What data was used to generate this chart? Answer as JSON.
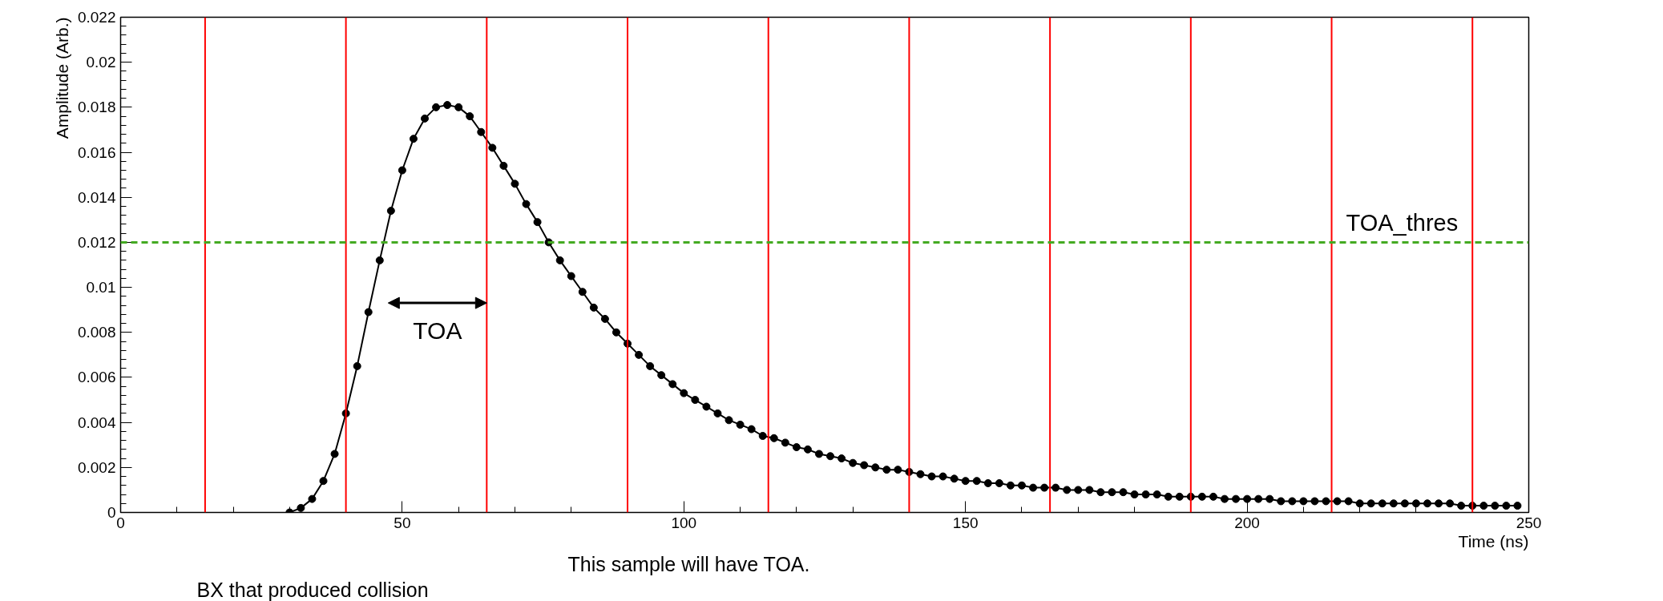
{
  "chart_data": {
    "type": "line",
    "xlabel": "Time (ns)",
    "ylabel": "Amplitude (Arb.)",
    "xlim": [
      0,
      250
    ],
    "ylim": [
      0,
      0.022
    ],
    "xticks": [
      0,
      50,
      100,
      150,
      200,
      250
    ],
    "yticks": [
      0,
      0.002,
      0.004,
      0.006,
      0.008,
      0.01,
      0.012,
      0.014,
      0.016,
      0.018,
      0.02,
      0.022
    ],
    "grid": false,
    "marker": "circle",
    "line_style": "solid",
    "series": [
      {
        "color": "#000000",
        "x": [
          30,
          32,
          34,
          36,
          38,
          40,
          42,
          44,
          46,
          48,
          50,
          52,
          54,
          56,
          58,
          60,
          62,
          64,
          66,
          68,
          70,
          72,
          74,
          76,
          78,
          80,
          82,
          84,
          86,
          88,
          90,
          92,
          94,
          96,
          98,
          100,
          102,
          104,
          106,
          108,
          110,
          112,
          114,
          116,
          118,
          120,
          122,
          124,
          126,
          128,
          130,
          132,
          134,
          136,
          138,
          140,
          142,
          144,
          146,
          148,
          150,
          152,
          154,
          156,
          158,
          160,
          162,
          164,
          166,
          168,
          170,
          172,
          174,
          176,
          178,
          180,
          182,
          184,
          186,
          188,
          190,
          192,
          194,
          196,
          198,
          200,
          202,
          204,
          206,
          208,
          210,
          212,
          214,
          216,
          218,
          220,
          222,
          224,
          226,
          228,
          230,
          232,
          234,
          236,
          238,
          240,
          242,
          244,
          246,
          248
        ],
        "values": [
          0.0,
          0.0002,
          0.0006,
          0.0014,
          0.0026,
          0.0044,
          0.0065,
          0.0089,
          0.0112,
          0.0134,
          0.0152,
          0.0166,
          0.0175,
          0.018,
          0.0181,
          0.018,
          0.0176,
          0.0169,
          0.0162,
          0.0154,
          0.0146,
          0.0137,
          0.0129,
          0.012,
          0.0112,
          0.0105,
          0.0098,
          0.0091,
          0.0086,
          0.008,
          0.0075,
          0.007,
          0.0065,
          0.0061,
          0.0057,
          0.0053,
          0.005,
          0.0047,
          0.0044,
          0.0041,
          0.0039,
          0.0037,
          0.0034,
          0.0033,
          0.0031,
          0.0029,
          0.0028,
          0.0026,
          0.0025,
          0.0024,
          0.0022,
          0.0021,
          0.002,
          0.0019,
          0.0019,
          0.0018,
          0.0017,
          0.0016,
          0.0016,
          0.0015,
          0.0014,
          0.0014,
          0.0013,
          0.0013,
          0.0012,
          0.0012,
          0.0011,
          0.0011,
          0.0011,
          0.001,
          0.001,
          0.001,
          0.0009,
          0.0009,
          0.0009,
          0.0008,
          0.0008,
          0.0008,
          0.0007,
          0.0007,
          0.0007,
          0.0007,
          0.0007,
          0.0006,
          0.0006,
          0.0006,
          0.0006,
          0.0006,
          0.0005,
          0.0005,
          0.0005,
          0.0005,
          0.0005,
          0.0005,
          0.0005,
          0.0004,
          0.0004,
          0.0004,
          0.0004,
          0.0004,
          0.0004,
          0.0004,
          0.0004,
          0.0004,
          0.0003,
          0.0003,
          0.0003,
          0.0003,
          0.0003,
          0.0003
        ]
      }
    ],
    "ref_lines": [
      {
        "axis": "x",
        "value": 15,
        "color": "#ff0000"
      },
      {
        "axis": "x",
        "value": 40,
        "color": "#ff0000"
      },
      {
        "axis": "x",
        "value": 65,
        "color": "#ff0000"
      },
      {
        "axis": "x",
        "value": 90,
        "color": "#ff0000"
      },
      {
        "axis": "x",
        "value": 115,
        "color": "#ff0000"
      },
      {
        "axis": "x",
        "value": 140,
        "color": "#ff0000"
      },
      {
        "axis": "x",
        "value": 165,
        "color": "#ff0000"
      },
      {
        "axis": "x",
        "value": 190,
        "color": "#ff0000"
      },
      {
        "axis": "x",
        "value": 215,
        "color": "#ff0000"
      },
      {
        "axis": "x",
        "value": 240,
        "color": "#ff0000"
      },
      {
        "axis": "y",
        "value": 0.012,
        "label": "TOA_thres",
        "color": "#44aa22",
        "line_style": "dashed"
      }
    ],
    "annotations": [
      "TOA",
      "This sample will have TOA.",
      "BX that produced collision"
    ]
  }
}
